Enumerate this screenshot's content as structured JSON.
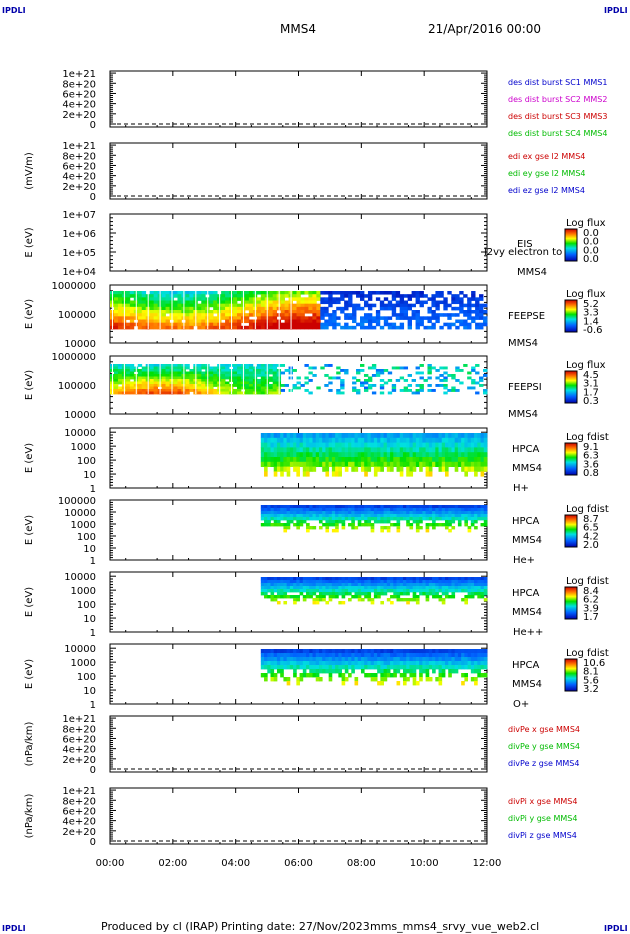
{
  "header": {
    "corner_tl": "IPDLI",
    "corner_tr": "IPDLI",
    "corner_bl": "IPDLI",
    "corner_br": "IPDLI",
    "spacecraft": "MMS4",
    "date": "21/Apr/2016 00:00"
  },
  "footer": {
    "produced_by": "Produced by cl (IRAP)",
    "printing_date": "Printing date: 27/Nov/2023",
    "script": "mms_mms4_srvy_vue_web2.cl"
  },
  "colors": {
    "panel_border": "#000000",
    "label_blue": "#0000cc",
    "label_magenta": "#cc00cc",
    "label_red": "#cc0000",
    "label_green": "#00bb00"
  },
  "chart_data": [
    {
      "type": "line",
      "panel": "des-dist-burst",
      "ylabel": "",
      "yticks": [
        "1e+21",
        "8e+20",
        "6e+20",
        "4e+20",
        "2e+20",
        "0"
      ],
      "ylim": [
        0,
        1.1e+21
      ],
      "series": [
        {
          "name": "des dist burst SC1 MMS1",
          "color": "#0000cc",
          "values": []
        },
        {
          "name": "des dist burst SC2 MMS2",
          "color": "#cc00cc",
          "values": []
        },
        {
          "name": "des dist burst SC3 MMS3",
          "color": "#cc0000",
          "values": []
        },
        {
          "name": "des dist burst SC4 MMS4",
          "color": "#00bb00",
          "values": []
        }
      ],
      "zero_line": "dashed"
    },
    {
      "type": "line",
      "panel": "edi-e-gse",
      "ylabel": "(mV/m)",
      "yticks": [
        "1e+21",
        "8e+20",
        "6e+20",
        "4e+20",
        "2e+20",
        "0"
      ],
      "ylim": [
        0,
        1.1e+21
      ],
      "series": [
        {
          "name": "edi ex gse l2 MMS4",
          "color": "#cc0000",
          "values": []
        },
        {
          "name": "edi ey gse l2 MMS4",
          "color": "#00bb00",
          "values": []
        },
        {
          "name": "edi ez gse l2 MMS4",
          "color": "#0000cc",
          "values": []
        }
      ],
      "zero_line": "dashed"
    },
    {
      "type": "heatmap",
      "panel": "eis",
      "ylabel": "E (eV)",
      "yticks": [
        "1e+07",
        "1e+06",
        "1e+05",
        "1e+04"
      ],
      "yscale": "log",
      "ylim": [
        10000.0,
        10000000.0
      ],
      "labels": [
        "EIS",
        "l2vy electron to",
        "MMS4"
      ],
      "colorbar": {
        "title": "Log flux",
        "ticks": [
          "0.0",
          "0.0",
          "0.0",
          "0.0"
        ]
      },
      "coverage": []
    },
    {
      "type": "heatmap",
      "panel": "feepse",
      "ylabel": "E (eV)",
      "yticks": [
        "1000000",
        "100000",
        "10000"
      ],
      "yscale": "log",
      "ylim": [
        10000,
        1000000
      ],
      "labels": [
        "FEEPSE",
        "MMS4"
      ],
      "colorbar": {
        "title": "Log flux",
        "ticks": [
          "5.2",
          "3.3",
          "1.4",
          "-0.6"
        ]
      },
      "coverage": [
        [
          0.0,
          12.0
        ]
      ]
    },
    {
      "type": "heatmap",
      "panel": "feepsi",
      "ylabel": "E (eV)",
      "yticks": [
        "1000000",
        "100000",
        "10000"
      ],
      "yscale": "log",
      "ylim": [
        10000,
        1000000
      ],
      "labels": [
        "FEEPSI",
        "MMS4"
      ],
      "colorbar": {
        "title": "Log flux",
        "ticks": [
          "4.5",
          "3.1",
          "1.7",
          "0.3"
        ]
      },
      "coverage": [
        [
          0.0,
          12.0
        ]
      ]
    },
    {
      "type": "heatmap",
      "panel": "hpca-h",
      "ylabel": "E (eV)",
      "yticks": [
        "10000",
        "1000",
        "100",
        "10",
        "1"
      ],
      "yscale": "log",
      "ylim": [
        1,
        20000
      ],
      "labels": [
        "HPCA",
        "MMS4",
        "H+"
      ],
      "colorbar": {
        "title": "Log fdist",
        "ticks": [
          "9.1",
          "6.3",
          "3.6",
          "0.8"
        ]
      },
      "coverage": [
        [
          4.8,
          12.0
        ]
      ]
    },
    {
      "type": "heatmap",
      "panel": "hpca-he",
      "ylabel": "E (eV)",
      "yticks": [
        "100000",
        "10000",
        "1000",
        "100",
        "10",
        "1"
      ],
      "yscale": "log",
      "ylim": [
        1,
        100000
      ],
      "labels": [
        "HPCA",
        "MMS4",
        "He+"
      ],
      "colorbar": {
        "title": "Log fdist",
        "ticks": [
          "8.7",
          "6.5",
          "4.2",
          "2.0"
        ]
      },
      "coverage": [
        [
          4.8,
          12.0
        ]
      ]
    },
    {
      "type": "heatmap",
      "panel": "hpca-he2",
      "ylabel": "E (eV)",
      "yticks": [
        "10000",
        "1000",
        "100",
        "10",
        "1"
      ],
      "yscale": "log",
      "ylim": [
        1,
        20000
      ],
      "labels": [
        "HPCA",
        "MMS4",
        "He++"
      ],
      "colorbar": {
        "title": "Log fdist",
        "ticks": [
          "8.4",
          "6.2",
          "3.9",
          "1.7"
        ]
      },
      "coverage": [
        [
          4.8,
          12.0
        ]
      ]
    },
    {
      "type": "heatmap",
      "panel": "hpca-o",
      "ylabel": "E (eV)",
      "yticks": [
        "10000",
        "1000",
        "100",
        "10",
        "1"
      ],
      "yscale": "log",
      "ylim": [
        1,
        20000
      ],
      "labels": [
        "HPCA",
        "MMS4",
        "O+"
      ],
      "colorbar": {
        "title": "Log fdist",
        "ticks": [
          "10.6",
          "8.1",
          "5.6",
          "3.2"
        ]
      },
      "coverage": [
        [
          4.8,
          12.0
        ]
      ]
    },
    {
      "type": "line",
      "panel": "divpe",
      "ylabel": "(nPa/km)",
      "yticks": [
        "1e+21",
        "8e+20",
        "6e+20",
        "4e+20",
        "2e+20",
        "0"
      ],
      "ylim": [
        0,
        1.1e+21
      ],
      "series": [
        {
          "name": "divPe x gse MMS4",
          "color": "#cc0000",
          "values": []
        },
        {
          "name": "divPe y gse MMS4",
          "color": "#00bb00",
          "values": []
        },
        {
          "name": "divPe z gse MMS4",
          "color": "#0000cc",
          "values": []
        }
      ],
      "zero_line": "dashed"
    },
    {
      "type": "line",
      "panel": "divpi",
      "ylabel": "(nPa/km)",
      "yticks": [
        "1e+21",
        "8e+20",
        "6e+20",
        "4e+20",
        "2e+20",
        "0"
      ],
      "ylim": [
        0,
        1.1e+21
      ],
      "series": [
        {
          "name": "divPi x gse MMS4",
          "color": "#cc0000",
          "values": []
        },
        {
          "name": "divPi y gse MMS4",
          "color": "#00bb00",
          "values": []
        },
        {
          "name": "divPi z gse MMS4",
          "color": "#0000cc",
          "values": []
        }
      ],
      "zero_line": "dashed"
    }
  ],
  "time_axis": {
    "ticks": [
      "00:00",
      "02:00",
      "04:00",
      "06:00",
      "08:00",
      "10:00",
      "12:00"
    ],
    "range_hours": [
      0,
      12
    ]
  }
}
